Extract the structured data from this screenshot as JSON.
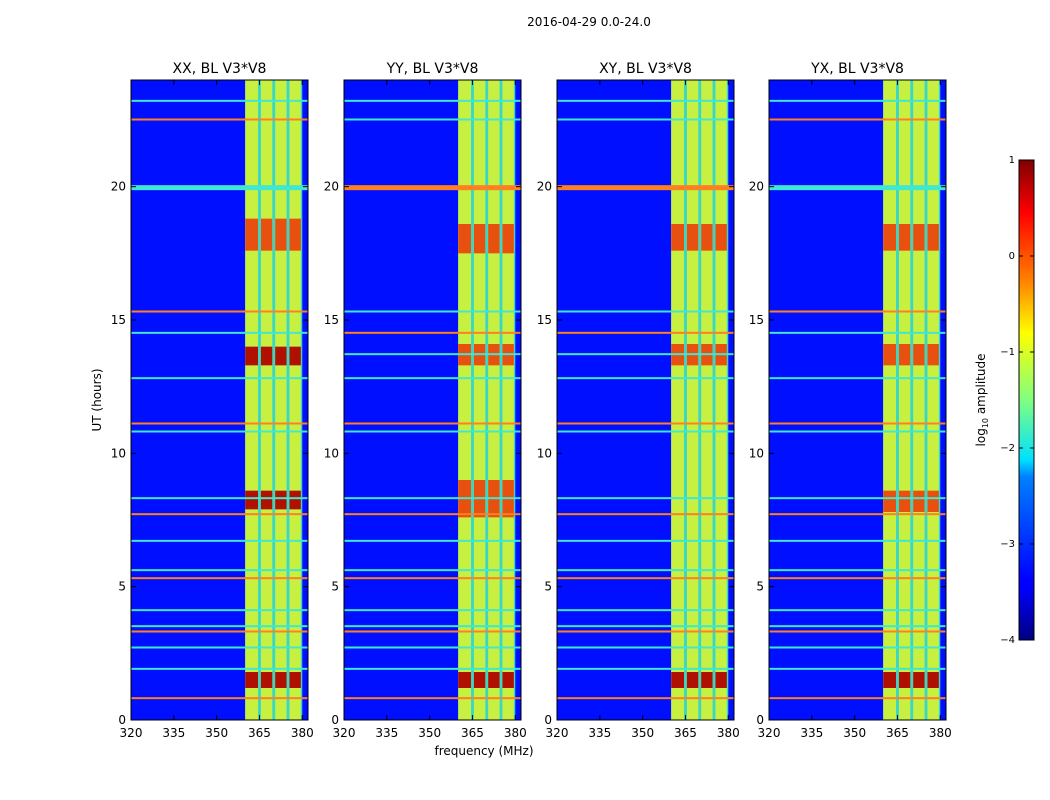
{
  "suptitle": "2016-04-29 0.0-24.0",
  "chart_data": {
    "type": "heatmap",
    "shared": {
      "xlabel": "frequency (MHz)",
      "ylabel": "UT (hours)",
      "xlim": [
        320,
        382
      ],
      "ylim": [
        0,
        24
      ],
      "xticks": [
        320,
        335,
        350,
        365,
        380
      ],
      "yticks": [
        0,
        5,
        10,
        15,
        20
      ],
      "colormap": "jet"
    },
    "colorbar": {
      "label": "log10 amplitude",
      "label_main": "log",
      "label_sub": "10",
      "label_rest": " amplitude",
      "range": [
        -4,
        1
      ],
      "ticks": [
        1,
        0,
        -1,
        -2,
        -3,
        -4
      ],
      "tick_labels": [
        "1",
        "0",
        "−1",
        "−2",
        "−3",
        "−4"
      ]
    },
    "panels": [
      {
        "title": "XX, BL V3*V8",
        "background_level": -3.3,
        "bright_band_mhz": [
          360,
          380
        ],
        "band_columns_mhz": [
          [
            360,
            364.5
          ],
          [
            365.5,
            369.5
          ],
          [
            370.5,
            374.5
          ],
          [
            375.5,
            379.5
          ]
        ],
        "hot_rows_ut": [
          [
            13.3,
            14.0
          ],
          [
            17.6,
            18.8
          ],
          [
            7.9,
            8.6
          ],
          [
            1.2,
            1.8
          ]
        ],
        "rfi_rows_ut": [
          0.8,
          1.9,
          2.7,
          3.3,
          3.5,
          4.1,
          5.3,
          5.6,
          6.7,
          7.7,
          8.3,
          10.8,
          11.1,
          12.8,
          14.5,
          15.3,
          19.9,
          20.0,
          22.5,
          23.2
        ]
      },
      {
        "title": "YY, BL V3*V8",
        "background_level": -3.3,
        "bright_band_mhz": [
          360,
          380
        ],
        "band_columns_mhz": [
          [
            360,
            364.5
          ],
          [
            365.5,
            369.5
          ],
          [
            370.5,
            374.5
          ],
          [
            375.5,
            379.5
          ]
        ],
        "hot_rows_ut": [
          [
            13.3,
            14.1
          ],
          [
            7.6,
            9.0
          ],
          [
            17.5,
            18.6
          ],
          [
            1.2,
            1.8
          ]
        ],
        "rfi_rows_ut": [
          0.8,
          1.9,
          2.7,
          3.3,
          3.5,
          4.1,
          5.3,
          5.6,
          6.7,
          7.7,
          8.3,
          10.8,
          11.1,
          12.8,
          13.7,
          14.5,
          15.3,
          19.9,
          20.0,
          22.5,
          23.2
        ]
      },
      {
        "title": "XY, BL V3*V8",
        "background_level": -3.3,
        "bright_band_mhz": [
          360,
          380
        ],
        "band_columns_mhz": [
          [
            360,
            364.5
          ],
          [
            365.5,
            369.5
          ],
          [
            370.5,
            374.5
          ],
          [
            375.5,
            379.5
          ]
        ],
        "hot_rows_ut": [
          [
            13.3,
            14.1
          ],
          [
            17.6,
            18.6
          ],
          [
            1.2,
            1.8
          ]
        ],
        "rfi_rows_ut": [
          0.8,
          1.9,
          2.7,
          3.3,
          3.5,
          4.1,
          5.3,
          5.6,
          6.7,
          7.7,
          8.3,
          10.8,
          11.1,
          12.8,
          13.7,
          14.5,
          15.3,
          19.9,
          20.0,
          22.5,
          23.2
        ]
      },
      {
        "title": "YX, BL V3*V8",
        "background_level": -3.3,
        "bright_band_mhz": [
          360,
          380
        ],
        "band_columns_mhz": [
          [
            360,
            364.5
          ],
          [
            365.5,
            369.5
          ],
          [
            370.5,
            374.5
          ],
          [
            375.5,
            379.5
          ]
        ],
        "hot_rows_ut": [
          [
            13.3,
            14.1
          ],
          [
            17.6,
            18.6
          ],
          [
            7.8,
            8.6
          ],
          [
            1.2,
            1.8
          ]
        ],
        "rfi_rows_ut": [
          0.8,
          1.9,
          2.7,
          3.3,
          3.5,
          4.1,
          5.3,
          5.6,
          6.7,
          7.7,
          8.3,
          10.8,
          11.1,
          12.8,
          14.5,
          15.3,
          19.9,
          20.0,
          22.5,
          23.2
        ]
      }
    ]
  }
}
